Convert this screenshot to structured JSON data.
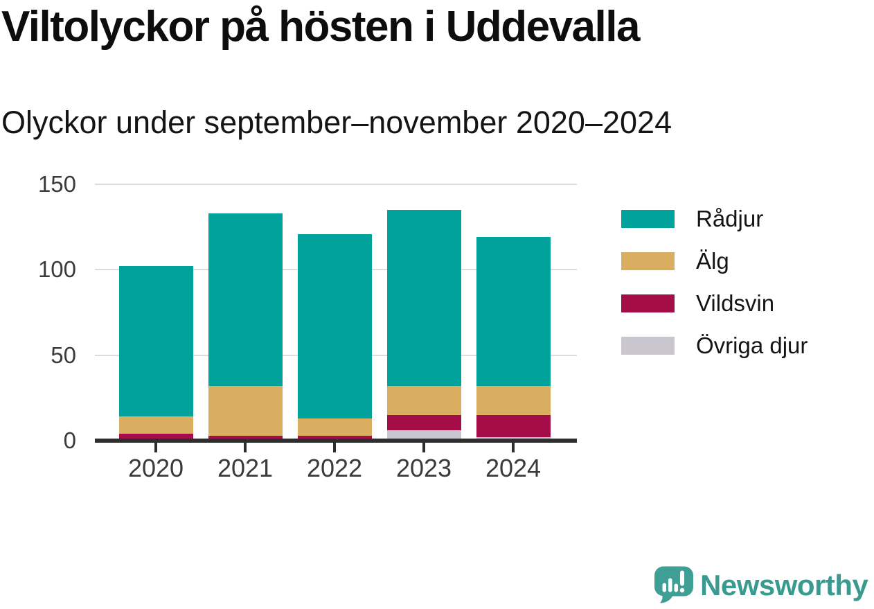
{
  "header": {
    "title": "Viltolyckor på hösten i Uddevalla",
    "subtitle": "Olyckor under september–november 2020–2024"
  },
  "chart_data": {
    "type": "bar",
    "stacked": true,
    "title": "Viltolyckor på hösten i Uddevalla",
    "subtitle": "Olyckor under september–november 2020–2024",
    "categories": [
      "2020",
      "2021",
      "2022",
      "2023",
      "2024"
    ],
    "series": [
      {
        "name": "Rådjur",
        "slug": "radjur",
        "color": "#00a29b",
        "values": [
          88,
          101,
          108,
          103,
          87
        ]
      },
      {
        "name": "Älg",
        "slug": "alg",
        "color": "#d9ae60",
        "values": [
          10,
          29,
          10,
          17,
          17
        ]
      },
      {
        "name": "Vildsvin",
        "slug": "vildsvin",
        "color": "#a50d49",
        "values": [
          4,
          3,
          3,
          9,
          13
        ]
      },
      {
        "name": "Övriga djur",
        "slug": "ovriga-djur",
        "color": "#c9c6cf",
        "values": [
          0,
          0,
          0,
          6,
          2
        ]
      }
    ],
    "totals": [
      102,
      133,
      121,
      135,
      119
    ],
    "stack_order_bottom_to_top": [
      "Övriga djur",
      "Vildsvin",
      "Älg",
      "Rådjur"
    ],
    "xlabel": "",
    "ylabel": "",
    "yticks": [
      0,
      50,
      100,
      150
    ],
    "ylim": [
      0,
      150
    ],
    "grid": true,
    "legend_position": "right"
  },
  "branding": {
    "wordmark": "Newsworthy",
    "logo_icon": "newsworthy-bubble-bar-chart-icon",
    "brand_color": "#399a90"
  },
  "colors": {
    "background": "#ffffff",
    "axis": "#2e2e2e",
    "gridline": "#dcdcdc",
    "tick_label": "#3a3a3a",
    "text": "#0d0d0d"
  }
}
